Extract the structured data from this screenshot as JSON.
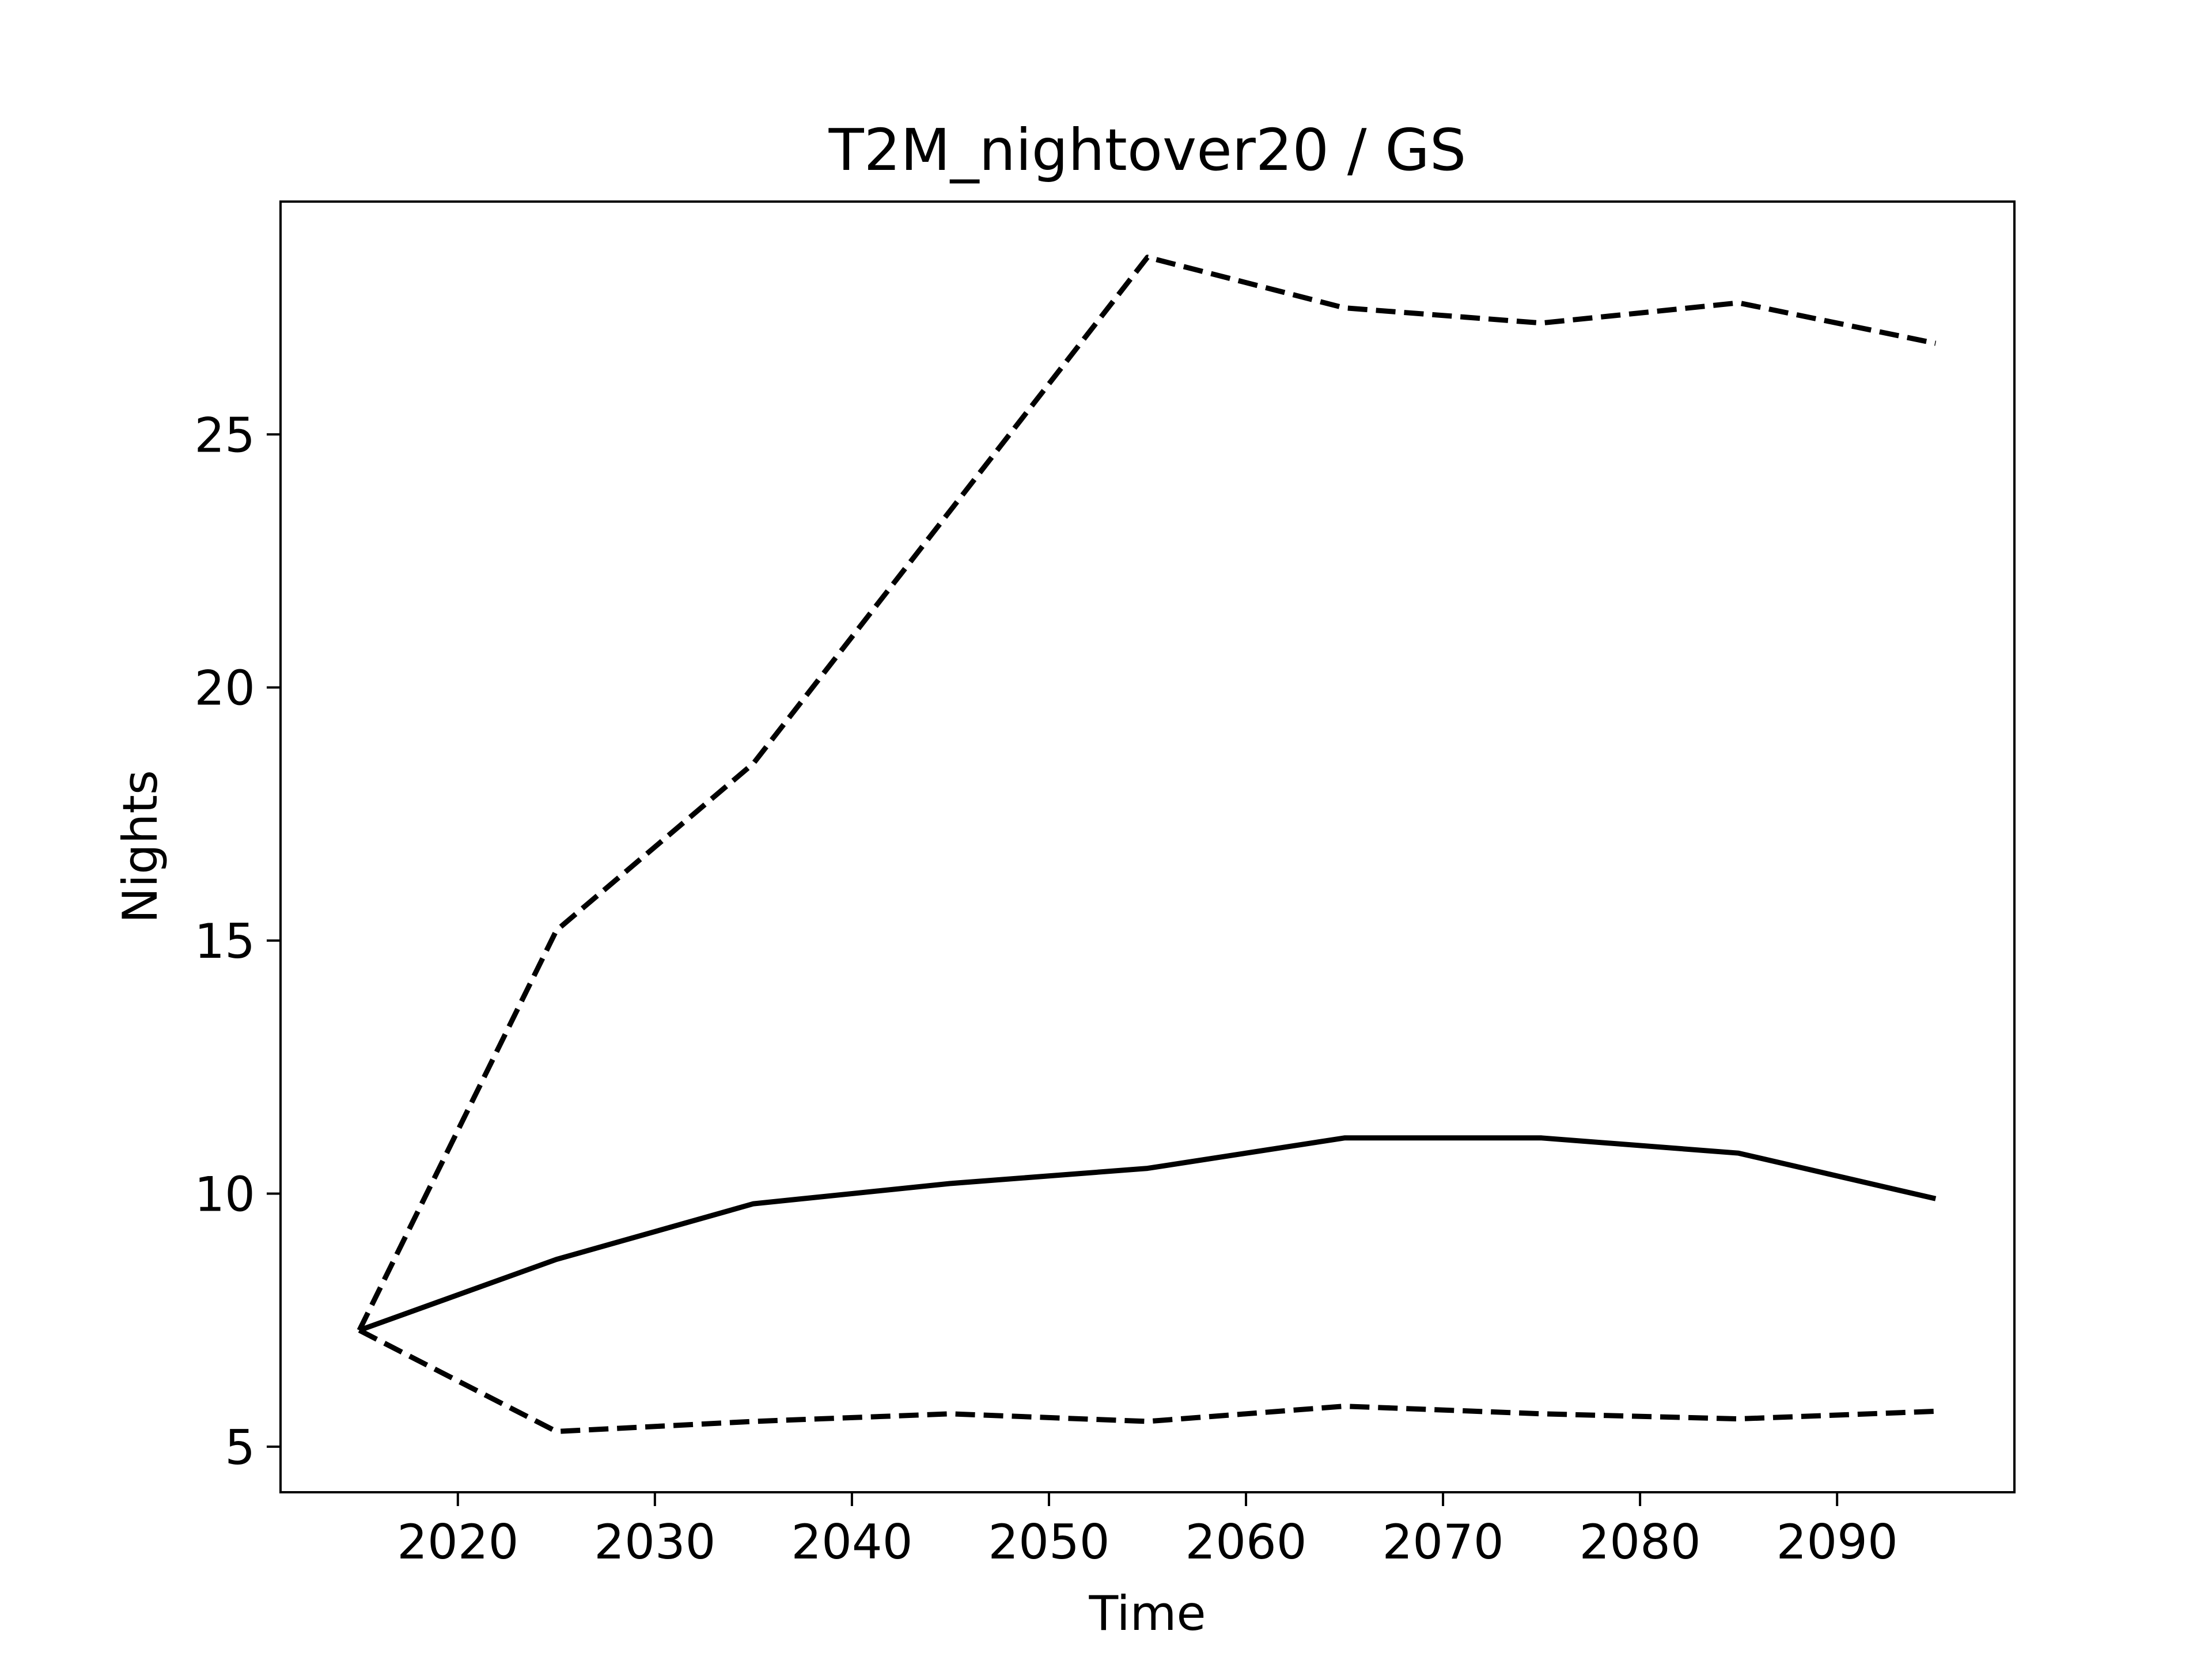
{
  "chart_data": {
    "type": "line",
    "title": "T2M_nightover20 / GS",
    "xlabel": "Time",
    "ylabel": "Nights",
    "xlim": [
      2011,
      2099
    ],
    "ylim": [
      4.1,
      29.6
    ],
    "xticks": [
      2020,
      2030,
      2040,
      2050,
      2060,
      2070,
      2080,
      2090
    ],
    "yticks": [
      5,
      10,
      15,
      20,
      25
    ],
    "grid": false,
    "legend": "none",
    "x": [
      2015,
      2025,
      2035,
      2045,
      2055,
      2065,
      2075,
      2085,
      2095
    ],
    "series": [
      {
        "style": "solid",
        "color": "#000000",
        "values": [
          7.3,
          8.7,
          9.8,
          10.2,
          10.5,
          11.1,
          11.1,
          10.8,
          9.9
        ]
      },
      {
        "style": "dashed",
        "color": "#000000",
        "values": [
          7.3,
          15.2,
          18.5,
          23.5,
          28.5,
          27.5,
          27.2,
          27.6,
          26.8
        ]
      },
      {
        "style": "dashed",
        "color": "#000000",
        "values": [
          7.3,
          5.3,
          5.5,
          5.65,
          5.5,
          5.8,
          5.65,
          5.55,
          5.7
        ]
      }
    ]
  }
}
